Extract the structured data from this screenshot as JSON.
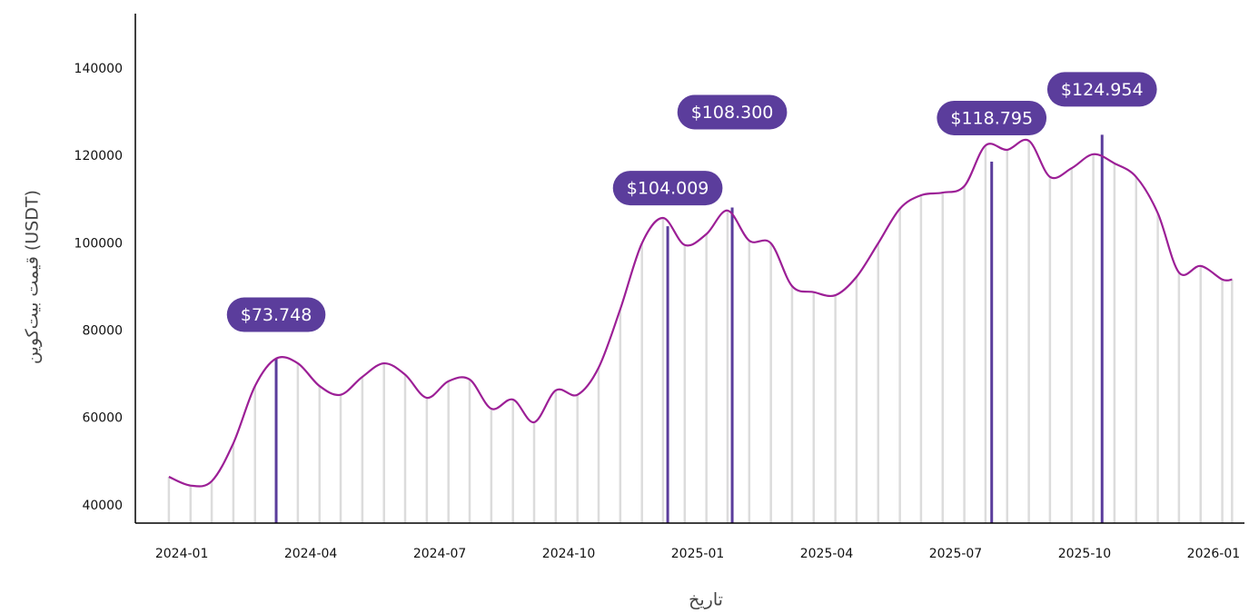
{
  "chart_data": {
    "type": "line",
    "y_label": "قیمت بیت‌کوین (USDT)",
    "x_label": "تاریخ",
    "xlim": [
      2023.91,
      2026.06
    ],
    "ylim": [
      36000,
      152700
    ],
    "xticks": [
      {
        "value": 2024.0,
        "label": "2024-01"
      },
      {
        "value": 2024.25,
        "label": "2024-04"
      },
      {
        "value": 2024.5,
        "label": "2024-07"
      },
      {
        "value": 2024.75,
        "label": "2024-10"
      },
      {
        "value": 2025.0,
        "label": "2025-01"
      },
      {
        "value": 2025.25,
        "label": "2025-04"
      },
      {
        "value": 2025.5,
        "label": "2025-07"
      },
      {
        "value": 2025.75,
        "label": "2025-10"
      },
      {
        "value": 2026.0,
        "label": "2026-01"
      }
    ],
    "yticks": [
      40000,
      60000,
      80000,
      100000,
      120000,
      140000
    ],
    "x": [
      2023.975,
      2024.017,
      2024.058,
      2024.1,
      2024.142,
      2024.183,
      2024.225,
      2024.267,
      2024.308,
      2024.35,
      2024.392,
      2024.433,
      2024.475,
      2024.517,
      2024.558,
      2024.6,
      2024.642,
      2024.683,
      2024.725,
      2024.767,
      2024.808,
      2024.85,
      2024.892,
      2024.933,
      2024.975,
      2025.017,
      2025.058,
      2025.1,
      2025.142,
      2025.183,
      2025.225,
      2025.267,
      2025.308,
      2025.35,
      2025.392,
      2025.433,
      2025.475,
      2025.517,
      2025.558,
      2025.6,
      2025.642,
      2025.683,
      2025.725,
      2025.767,
      2025.808,
      2025.85,
      2025.892,
      2025.933,
      2025.975,
      2026.017,
      2026.036
    ],
    "series": [
      {
        "color": "#9c1f96",
        "bar_color": "#dcdcdc",
        "values": [
          46600,
          44600,
          45600,
          54300,
          67400,
          73700,
          72600,
          67400,
          65400,
          69500,
          72600,
          70000,
          64700,
          68500,
          68900,
          62200,
          64300,
          59100,
          66400,
          65400,
          71600,
          85000,
          100100,
          105900,
          99700,
          102200,
          107600,
          100700,
          100100,
          90300,
          88900,
          88200,
          92400,
          100100,
          108000,
          111100,
          111700,
          113200,
          122500,
          121500,
          123600,
          115300,
          117300,
          120500,
          118400,
          115300,
          107000,
          93400,
          94900,
          91800,
          91800
        ]
      }
    ],
    "annotations": {
      "color": "#5b3d9c",
      "x": [
        2024.183,
        2024.942,
        2025.067,
        2025.57,
        2025.784
      ],
      "values": [
        73748,
        104009,
        108300,
        118795,
        124954
      ],
      "value_labels": [
        "$73.748",
        "$104.009",
        "$108.300",
        "$118.795",
        "$124.954"
      ]
    }
  }
}
